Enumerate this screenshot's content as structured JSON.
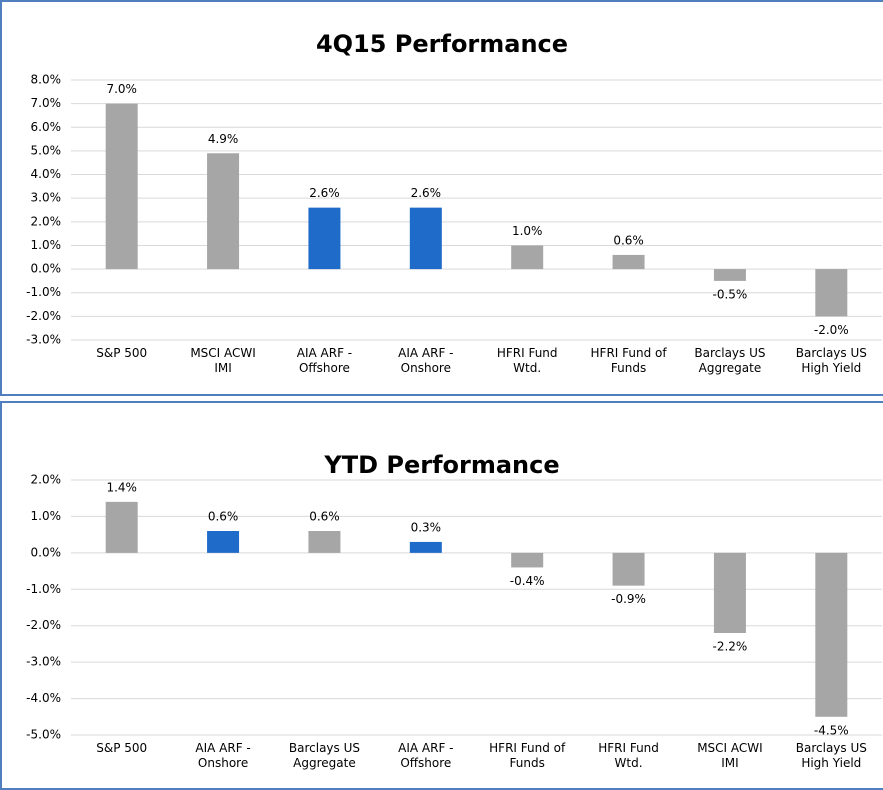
{
  "chart_data": [
    {
      "type": "bar",
      "title": "4Q15 Performance",
      "categories": [
        "S&P 500",
        "MSCI ACWI IMI",
        "AIA ARF - Offshore",
        "AIA ARF - Onshore",
        "HFRI Fund Wtd.",
        "HFRI Fund of Funds",
        "Barclays US Aggregate",
        "Barclays US High Yield"
      ],
      "values": [
        7.0,
        4.9,
        2.6,
        2.6,
        1.0,
        0.6,
        -0.5,
        -2.0
      ],
      "value_labels": [
        "7.0%",
        "4.9%",
        "2.6%",
        "2.6%",
        "1.0%",
        "0.6%",
        "-0.5%",
        "-2.0%"
      ],
      "colors": [
        "#a6a6a6",
        "#a6a6a6",
        "#1f6bc9",
        "#1f6bc9",
        "#a6a6a6",
        "#a6a6a6",
        "#a6a6a6",
        "#a6a6a6"
      ],
      "ylim": [
        -3,
        8
      ],
      "yticks": [
        {
          "value": -3,
          "label": "-3.0%"
        },
        {
          "value": -2,
          "label": "-2.0%"
        },
        {
          "value": -1,
          "label": "-1.0%"
        },
        {
          "value": 0,
          "label": "0.0%"
        },
        {
          "value": 1,
          "label": "1.0%"
        },
        {
          "value": 2,
          "label": "2.0%"
        },
        {
          "value": 3,
          "label": "3.0%"
        },
        {
          "value": 4,
          "label": "4.0%"
        },
        {
          "value": 5,
          "label": "5.0%"
        },
        {
          "value": 6,
          "label": "6.0%"
        },
        {
          "value": 7,
          "label": "7.0%"
        },
        {
          "value": 8,
          "label": "8.0%"
        }
      ],
      "grid": true
    },
    {
      "type": "bar",
      "title": "YTD Performance",
      "categories": [
        "S&P 500",
        "AIA ARF - Onshore",
        "Barclays US Aggregate",
        "AIA ARF - Offshore",
        "HFRI Fund of Funds",
        "HFRI Fund Wtd.",
        "MSCI ACWI IMI",
        "Barclays US High Yield"
      ],
      "values": [
        1.4,
        0.6,
        0.6,
        0.3,
        -0.4,
        -0.9,
        -2.2,
        -4.5
      ],
      "value_labels": [
        "1.4%",
        "0.6%",
        "0.6%",
        "0.3%",
        "-0.4%",
        "-0.9%",
        "-2.2%",
        "-4.5%"
      ],
      "colors": [
        "#a6a6a6",
        "#1f6bc9",
        "#a6a6a6",
        "#1f6bc9",
        "#a6a6a6",
        "#a6a6a6",
        "#a6a6a6",
        "#a6a6a6"
      ],
      "ylim": [
        -5,
        2
      ],
      "yticks": [
        {
          "value": -5,
          "label": "-5.0%"
        },
        {
          "value": -4,
          "label": "-4.0%"
        },
        {
          "value": -3,
          "label": "-3.0%"
        },
        {
          "value": -2,
          "label": "-2.0%"
        },
        {
          "value": -1,
          "label": "-1.0%"
        },
        {
          "value": 0,
          "label": "0.0%"
        },
        {
          "value": 1,
          "label": "1.0%"
        },
        {
          "value": 2,
          "label": "2.0%"
        }
      ],
      "grid": true
    }
  ]
}
